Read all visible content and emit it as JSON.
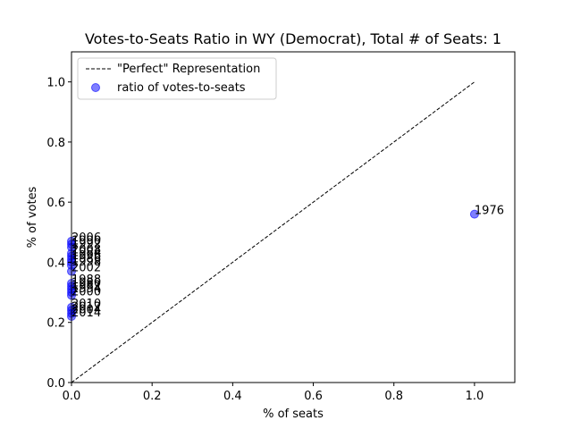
{
  "chart_data": {
    "type": "scatter",
    "title": "Votes-to-Seats Ratio in WY (Democrat), Total # of Seats: 1",
    "xlabel": "% of seats",
    "ylabel": "% of votes",
    "xlim": [
      0,
      1.1
    ],
    "ylim": [
      0,
      1.1
    ],
    "xticks": [
      "0.0",
      "0.2",
      "0.4",
      "0.6",
      "0.8",
      "1.0"
    ],
    "yticks": [
      "0.0",
      "0.2",
      "0.4",
      "0.6",
      "0.8",
      "1.0"
    ],
    "grid": false,
    "legend_position": "top-left",
    "reference_line": {
      "name": "\"Perfect\" Representation",
      "x": [
        0,
        1
      ],
      "y": [
        0,
        1
      ],
      "style": "dashed",
      "color": "#000000"
    },
    "series": [
      {
        "name": "ratio of votes-to-seats",
        "color": "#0000ff",
        "points": [
          {
            "x": 1.0,
            "y": 0.56,
            "label": "1976"
          },
          {
            "x": 0.0,
            "y": 0.47,
            "label": "2006"
          },
          {
            "x": 0.0,
            "y": 0.46,
            "label": "1990"
          },
          {
            "x": 0.0,
            "y": 0.45,
            "label": "1992"
          },
          {
            "x": 0.0,
            "y": 0.43,
            "label": "2008"
          },
          {
            "x": 0.0,
            "y": 0.42,
            "label": "1984"
          },
          {
            "x": 0.0,
            "y": 0.41,
            "label": "1996"
          },
          {
            "x": 0.0,
            "y": 0.4,
            "label": "1986"
          },
          {
            "x": 0.0,
            "y": 0.39,
            "label": "1998"
          },
          {
            "x": 0.0,
            "y": 0.37,
            "label": "2002"
          },
          {
            "x": 0.0,
            "y": 0.33,
            "label": "1988"
          },
          {
            "x": 0.0,
            "y": 0.32,
            "label": "1980"
          },
          {
            "x": 0.0,
            "y": 0.31,
            "label": "1982"
          },
          {
            "x": 0.0,
            "y": 0.3,
            "label": "1994"
          },
          {
            "x": 0.0,
            "y": 0.29,
            "label": "2000"
          },
          {
            "x": 0.0,
            "y": 0.25,
            "label": "2010"
          },
          {
            "x": 0.0,
            "y": 0.24,
            "label": "2012"
          },
          {
            "x": 0.0,
            "y": 0.23,
            "label": "2004"
          },
          {
            "x": 0.0,
            "y": 0.22,
            "label": "2014"
          }
        ]
      }
    ]
  }
}
